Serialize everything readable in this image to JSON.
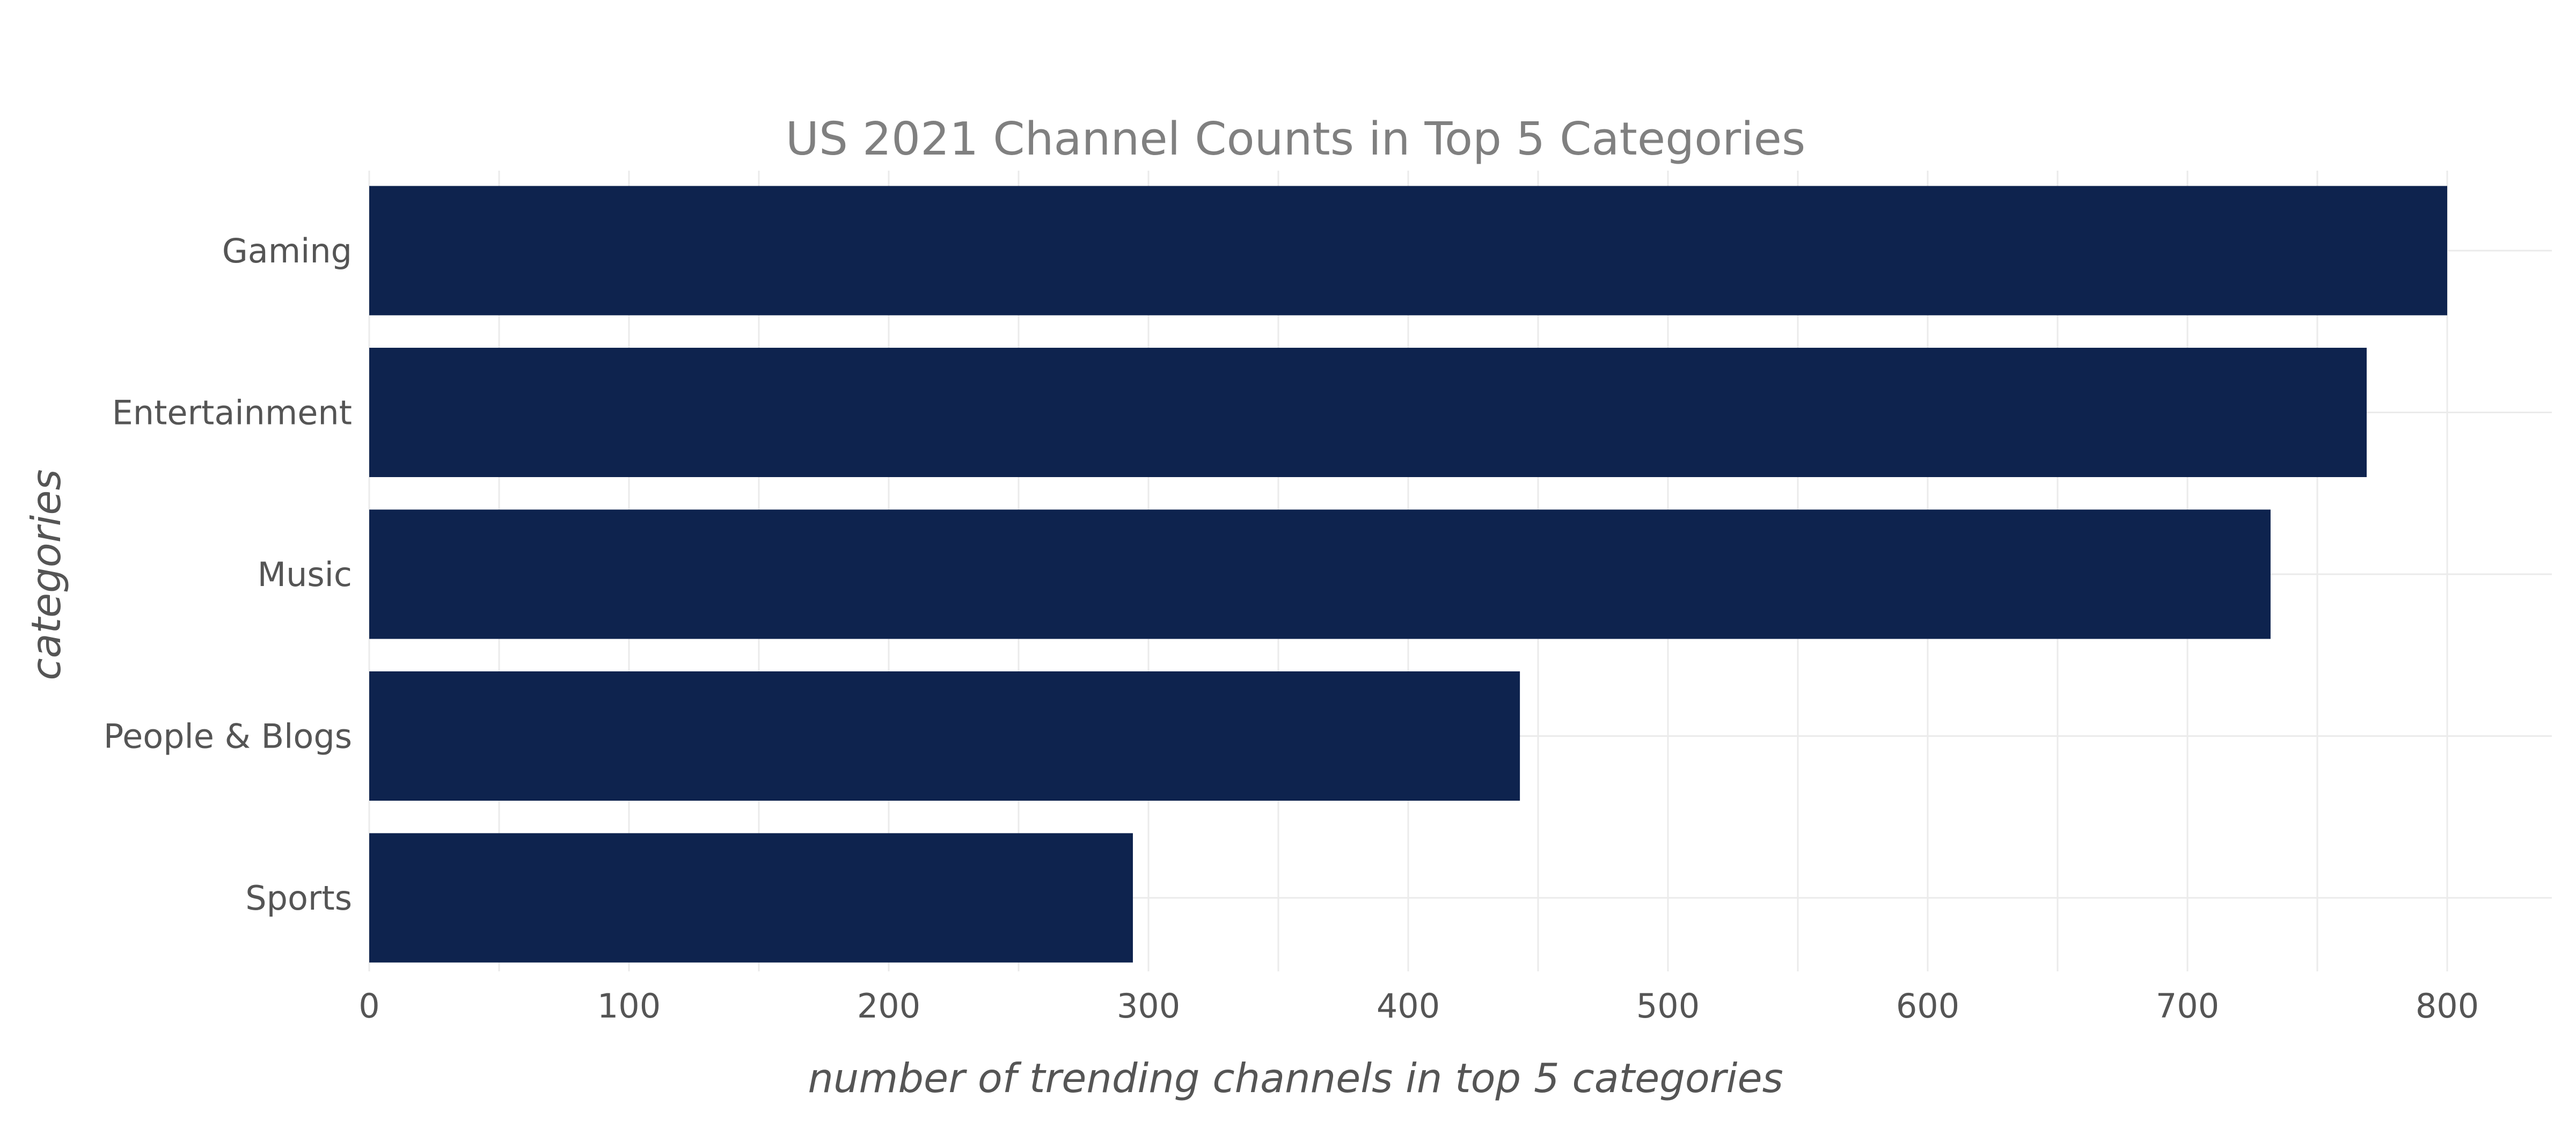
{
  "chart_data": {
    "type": "bar",
    "orientation": "horizontal",
    "title": "US 2021 Channel Counts in Top 5 Categories",
    "xlabel": "number of trending channels in top 5 categories",
    "ylabel": "categories",
    "categories": [
      "Gaming",
      "Entertainment",
      "Music",
      "People & Blogs",
      "Sports"
    ],
    "values": [
      800,
      769,
      732,
      443,
      294
    ],
    "xlim": [
      0,
      800
    ],
    "xticks": [
      "0",
      "100",
      "200",
      "300",
      "400",
      "500",
      "600",
      "700",
      "800"
    ],
    "bar_color": "#0e234e",
    "grid": true
  }
}
